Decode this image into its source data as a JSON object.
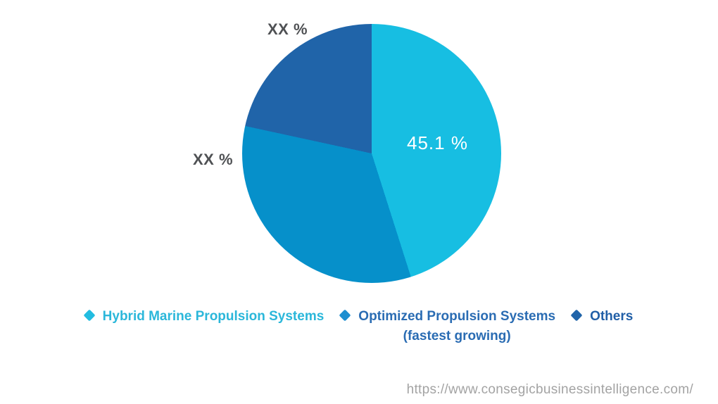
{
  "chart_data": {
    "type": "pie",
    "title": "",
    "labels": [
      "Hybrid Marine Propulsion Systems",
      "Optimized Propulsion Systems (fastest growing)",
      "Others"
    ],
    "values": [
      45.1,
      33.3,
      21.6
    ],
    "slice_labels": [
      "45.1 %",
      "XX %",
      "XX %"
    ],
    "colors": [
      "#17BEE2",
      "#0690CA",
      "#2064A9"
    ],
    "start_angle_deg": 0,
    "direction": "clockwise",
    "legend_position": "bottom",
    "background": "#ffffff",
    "xx_label_color": "#4f5154",
    "inside_label_color": "#ffffff"
  },
  "legend": {
    "items": [
      {
        "label": "Hybrid Marine Propulsion Systems",
        "label2": "",
        "marker": "diamond-icon",
        "marker_color": "#22BCE0",
        "text_color": "#2BB7DA"
      },
      {
        "label": "Optimized Propulsion Systems",
        "label2": "(fastest growing)",
        "marker": "diamond-icon",
        "marker_color": "#1E8FD0",
        "text_color": "#2A6CB3"
      },
      {
        "label": "Others",
        "label2": "",
        "marker": "diamond-icon",
        "marker_color": "#2064A9",
        "text_color": "#215FA7"
      }
    ]
  },
  "footer": {
    "url": "https://www.consegicbusinessintelligence.com/",
    "color": "#a3a3a3"
  }
}
